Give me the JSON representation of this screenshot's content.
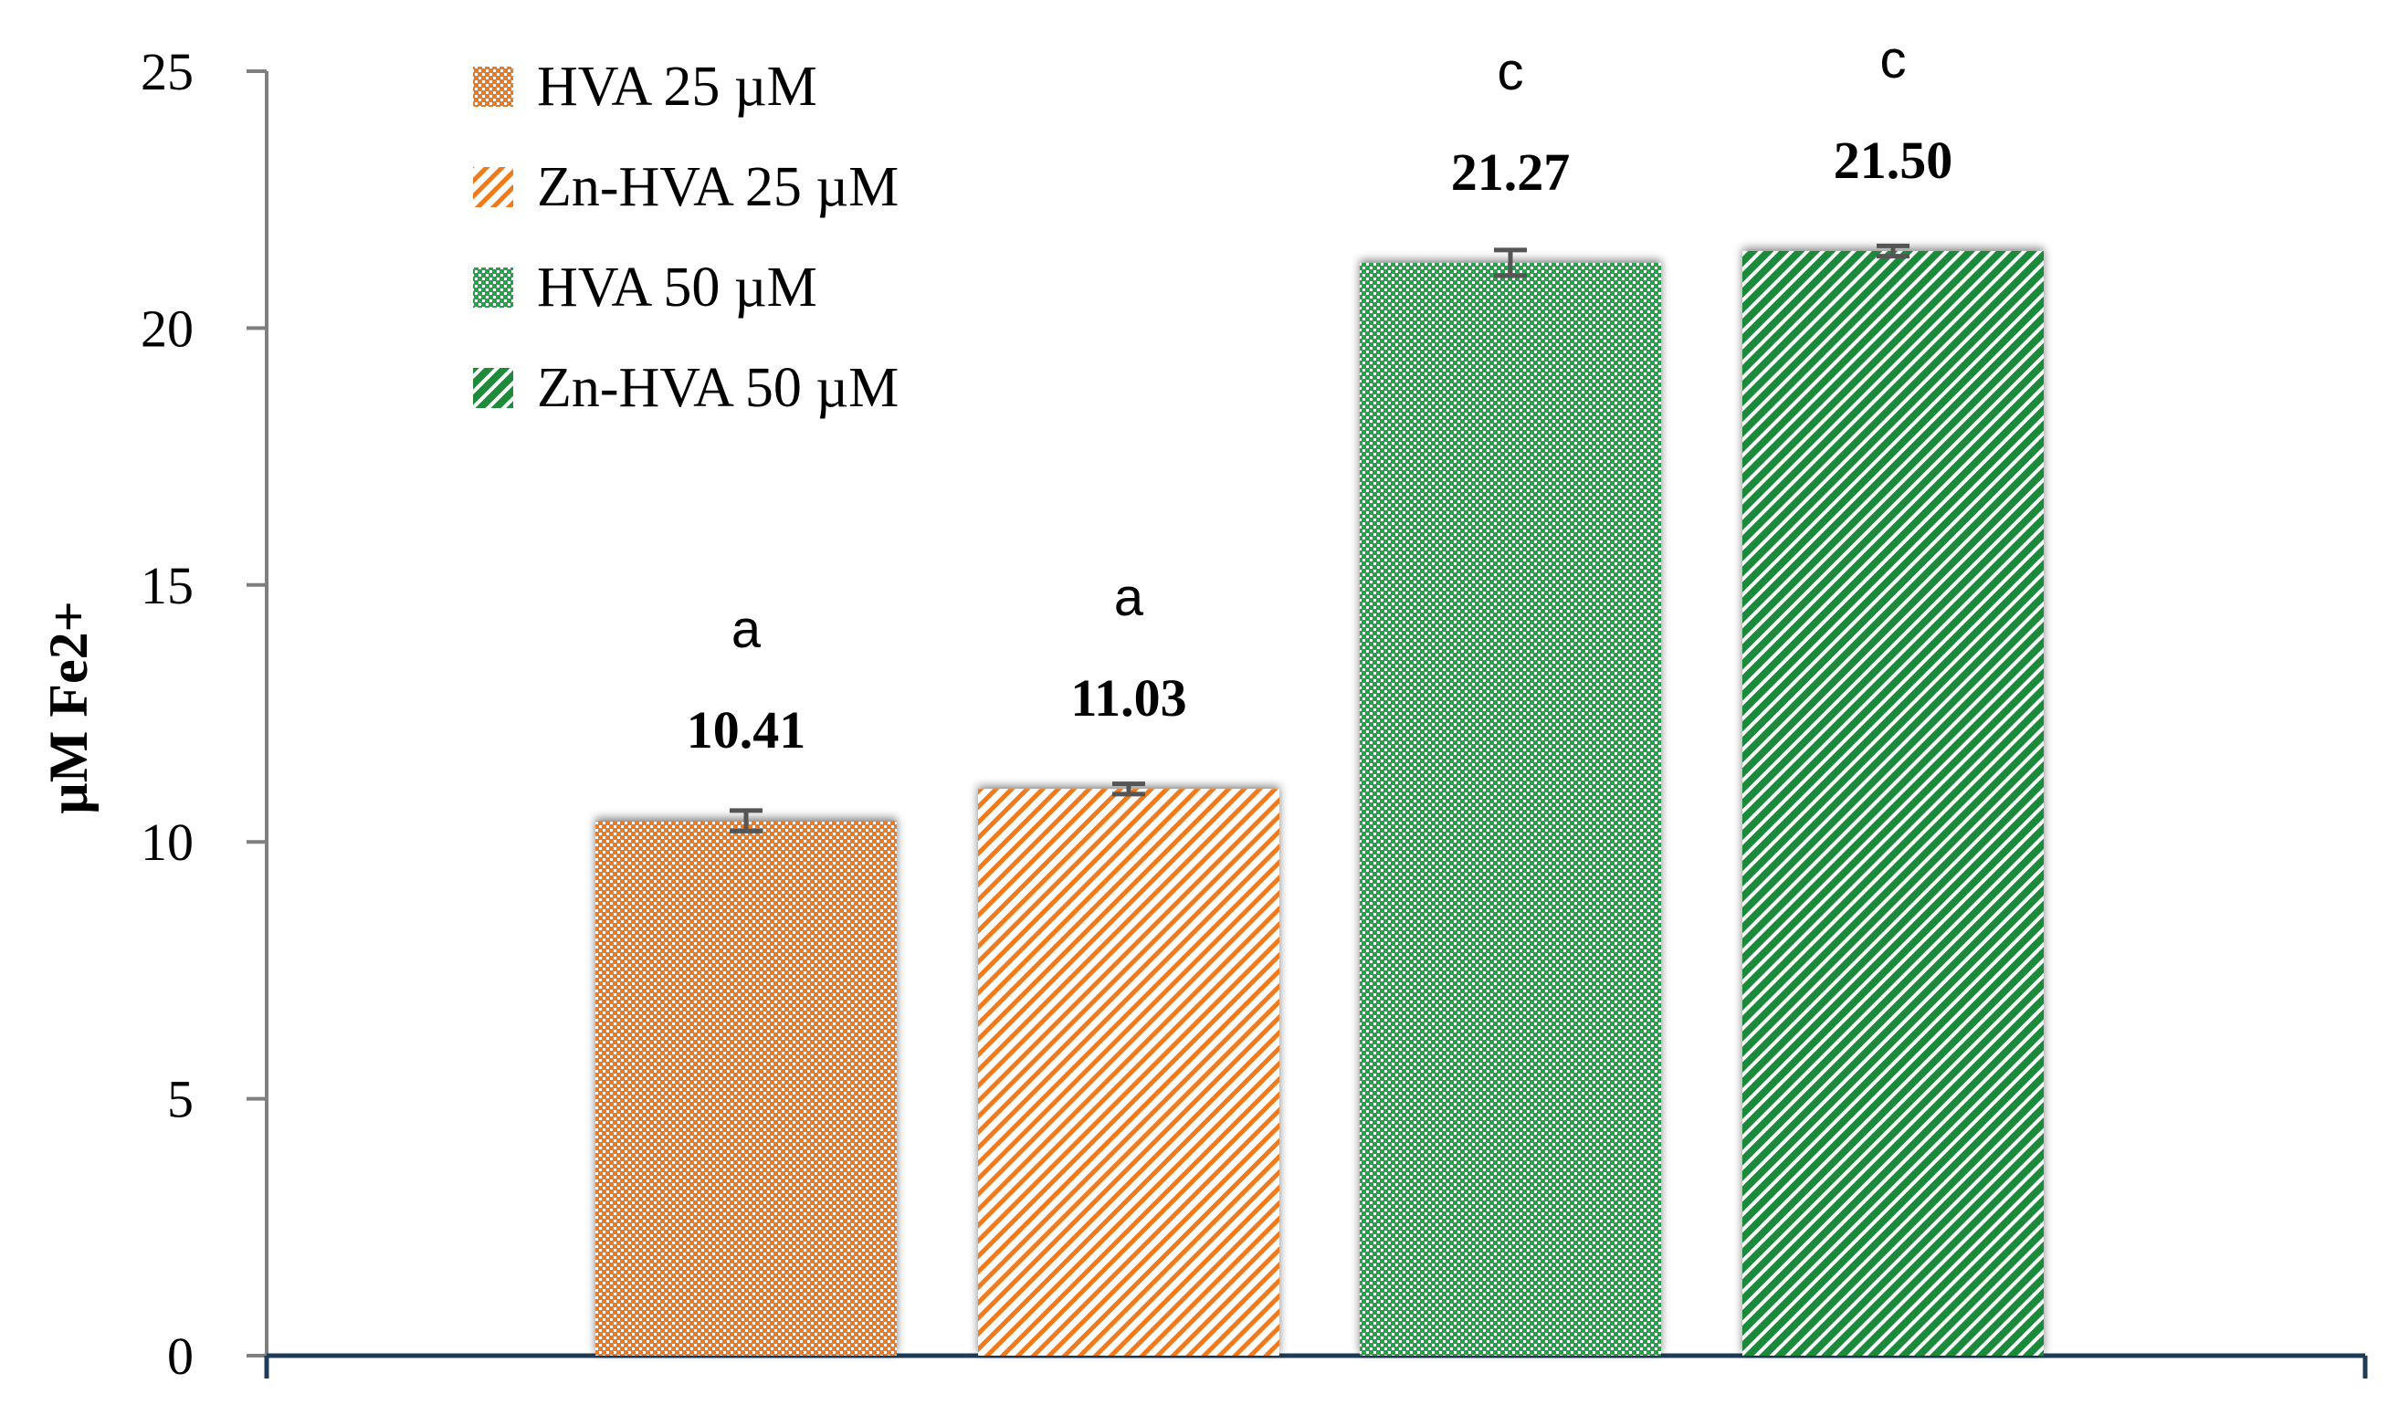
{
  "chart_data": {
    "type": "bar",
    "ylabel": "µM Fe2+",
    "xlabel": "",
    "ylim": [
      0,
      25
    ],
    "yticks": [
      0,
      5,
      10,
      15,
      20,
      25
    ],
    "legend_position": "top-left",
    "series": [
      {
        "name": "HVA 25 µM",
        "value": 10.41,
        "error": 0.2,
        "value_label": "10.41",
        "letter": "a",
        "color": "#F07A1A",
        "pattern": "checker"
      },
      {
        "name": "Zn-HVA 25 µM",
        "value": 11.03,
        "error": 0.1,
        "value_label": "11.03",
        "letter": "a",
        "color": "#F07A1A",
        "pattern": "diagonal-light"
      },
      {
        "name": "HVA 50 µM",
        "value": 21.27,
        "error": 0.25,
        "value_label": "21.27",
        "letter": "c",
        "color": "#1EA84A",
        "pattern": "checker"
      },
      {
        "name": "Zn-HVA 50 µM",
        "value": 21.5,
        "error": 0.1,
        "value_label": "21.50",
        "letter": "c",
        "color": "#1E8A3A",
        "pattern": "diagonal-dense"
      }
    ],
    "colors": {
      "axis": "#7F7F7F",
      "baseline": "#1F3B57",
      "errorbar": "#555555"
    }
  }
}
